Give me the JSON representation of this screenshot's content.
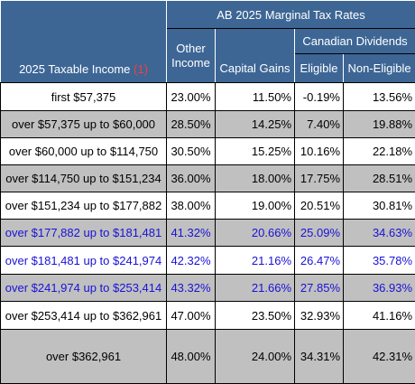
{
  "header": {
    "title": "AB 2025 Marginal Tax Rates",
    "income_label": "2025 Taxable Income",
    "income_footnote": "(1)",
    "other_income_line1": "Other",
    "other_income_line2": "Income",
    "capital_gains": "Capital Gains",
    "dividends_group": "Canadian Dividends",
    "eligible": "Eligible",
    "non_eligible": "Non-Eligible"
  },
  "colors": {
    "header_bg": "#3d6695",
    "grey_row": "#c0c0c0",
    "blue_text": "#1a12d6",
    "footnote": "#ff3b3b"
  },
  "rows": [
    {
      "income": "first $57,375",
      "other": "23.00%",
      "capgains": "11.50%",
      "eligible": "-0.19%",
      "non_eligible": "13.56%"
    },
    {
      "income": "over $57,375 up to $60,000",
      "other": "28.50%",
      "capgains": "14.25%",
      "eligible": "7.40%",
      "non_eligible": "19.88%"
    },
    {
      "income": "over $60,000 up to $114,750",
      "other": "30.50%",
      "capgains": "15.25%",
      "eligible": "10.16%",
      "non_eligible": "22.18%"
    },
    {
      "income": "over $114,750 up to $151,234",
      "other": "36.00%",
      "capgains": "18.00%",
      "eligible": "17.75%",
      "non_eligible": "28.51%"
    },
    {
      "income": "over $151,234 up to $177,882",
      "other": "38.00%",
      "capgains": "19.00%",
      "eligible": "20.51%",
      "non_eligible": "30.81%"
    },
    {
      "income": "over $177,882 up to $181,481",
      "other": "41.32%",
      "capgains": "20.66%",
      "eligible": "25.09%",
      "non_eligible": "34.63%"
    },
    {
      "income": "over $181,481 up to $241,974",
      "other": "42.32%",
      "capgains": "21.16%",
      "eligible": "26.47%",
      "non_eligible": "35.78%"
    },
    {
      "income": "over $241,974 up to $253,414",
      "other": "43.32%",
      "capgains": "21.66%",
      "eligible": "27.85%",
      "non_eligible": "36.93%"
    },
    {
      "income": "over $253,414 up to $362,961",
      "other": "47.00%",
      "capgains": "23.50%",
      "eligible": "32.93%",
      "non_eligible": "41.16%"
    },
    {
      "income": "over $362,961",
      "other": "48.00%",
      "capgains": "24.00%",
      "eligible": "34.31%",
      "non_eligible": "42.31%"
    }
  ]
}
